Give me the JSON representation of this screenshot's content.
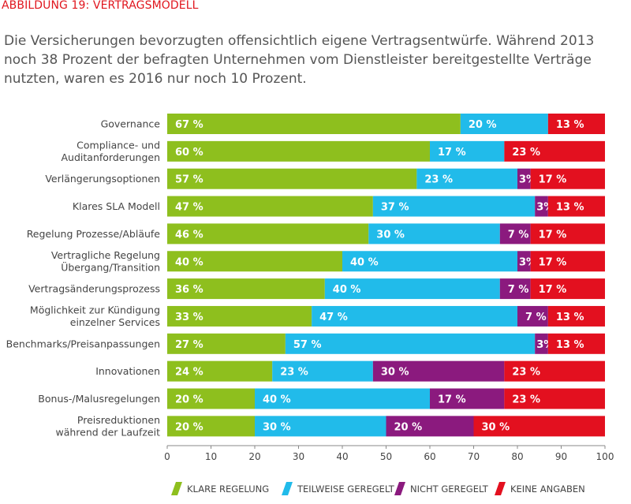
{
  "title": "ABBILDUNG 19: VERTRAGSMODELL",
  "intro": "Die Versicherungen bevorzugten offensichtlich eigene Vertragsentwürfe. Während 2013 noch 38 Prozent der befragten Unternehmen vom Dienstleister bereitgestellte Verträge nutzten, waren es 2016 nur noch 10 Prozent.",
  "colors": {
    "klare": "#8ebf1e",
    "teilweise": "#21bbea",
    "nicht": "#8b1a7e",
    "keine": "#e3101f"
  },
  "chart_data": {
    "type": "bar",
    "orientation": "horizontal",
    "stacked": true,
    "xlim": [
      0,
      100
    ],
    "xticks": [
      0,
      10,
      20,
      30,
      40,
      50,
      60,
      70,
      80,
      90,
      100
    ],
    "legend_position": "bottom",
    "categories": [
      [
        "Governance"
      ],
      [
        "Compliance- und",
        "Auditanforderungen"
      ],
      [
        "Verlängerungsoptionen"
      ],
      [
        "Klares SLA Modell"
      ],
      [
        "Regelung Prozesse/Abläufe"
      ],
      [
        "Vertragliche Regelung",
        "Übergang/Transition"
      ],
      [
        "Vertragsänderungsprozess"
      ],
      [
        "Möglichkeit zur Kündigung",
        "einzelner Services"
      ],
      [
        "Benchmarks/Preisanpassungen"
      ],
      [
        "Innovationen"
      ],
      [
        "Bonus-/Malusregelungen"
      ],
      [
        "Preisreduktionen",
        "während der Laufzeit"
      ]
    ],
    "series": [
      {
        "name": "KLARE REGELUNG",
        "color": "#8ebf1e",
        "values": [
          67,
          60,
          57,
          47,
          46,
          40,
          36,
          33,
          27,
          24,
          20,
          20
        ]
      },
      {
        "name": "TEILWEISE GEREGELT",
        "color": "#21bbea",
        "values": [
          20,
          17,
          23,
          37,
          30,
          40,
          40,
          47,
          57,
          23,
          40,
          30
        ]
      },
      {
        "name": "NICHT GEREGELT",
        "color": "#8b1a7e",
        "values": [
          0,
          0,
          3,
          3,
          7,
          3,
          7,
          7,
          3,
          30,
          17,
          20
        ]
      },
      {
        "name": "KEINE ANGABEN",
        "color": "#e3101f",
        "values": [
          13,
          23,
          17,
          13,
          17,
          17,
          17,
          13,
          13,
          23,
          23,
          30
        ]
      }
    ],
    "value_labels": [
      [
        "67 %",
        "20 %",
        "",
        "13 %"
      ],
      [
        "60 %",
        "17 %",
        "",
        "23 %"
      ],
      [
        "57 %",
        "23 %",
        "3%",
        "17 %"
      ],
      [
        "47 %",
        "37 %",
        "3%",
        "13 %"
      ],
      [
        "46 %",
        "30 %",
        "7 %",
        "17 %"
      ],
      [
        "40 %",
        "40 %",
        "3%",
        "17 %"
      ],
      [
        "36 %",
        "40 %",
        "7 %",
        "17 %"
      ],
      [
        "33 %",
        "47 %",
        "7 %",
        "13 %"
      ],
      [
        "27 %",
        "57 %",
        "3%",
        "13 %"
      ],
      [
        "24 %",
        "23 %",
        "30 %",
        "23 %"
      ],
      [
        "20 %",
        "40 %",
        "17 %",
        "23 %"
      ],
      [
        "20 %",
        "30 %",
        "20 %",
        "30 %"
      ]
    ]
  }
}
